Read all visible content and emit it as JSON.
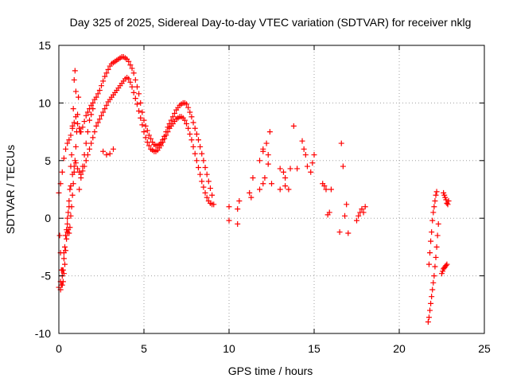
{
  "chart_data": {
    "type": "scatter",
    "title": "Day 325 of 2025, Sidereal Day-to-day VTEC variation (SDTVAR) for receiver nklg",
    "xlabel": "GPS time / hours",
    "ylabel": "SDTVAR / TECUs",
    "xlim": [
      0,
      25
    ],
    "ylim": [
      -10,
      15
    ],
    "xticks": [
      0,
      5,
      10,
      15,
      20,
      25
    ],
    "yticks": [
      -10,
      -5,
      0,
      5,
      10,
      15
    ],
    "grid": true,
    "marker": "plus",
    "color": "#ff0000",
    "series": [
      {
        "name": "main-arc-upper",
        "x": [
          0.0,
          0.1,
          0.2,
          0.3,
          0.4,
          0.5,
          0.6,
          0.7,
          0.8,
          0.9,
          1.0,
          1.1,
          1.2,
          1.3,
          1.4,
          1.5,
          1.6,
          1.7,
          1.8,
          1.9,
          2.0,
          2.1,
          2.2,
          2.3,
          2.4,
          2.5,
          2.6,
          2.7,
          2.8,
          2.9,
          3.0,
          3.1,
          3.2,
          3.3,
          3.4,
          3.5,
          3.6,
          3.7,
          3.8,
          3.9,
          4.0,
          4.1,
          4.2,
          4.3,
          4.4,
          4.5,
          4.6,
          4.7,
          4.8,
          4.9,
          5.0,
          5.1,
          5.2,
          5.3,
          5.4,
          5.5,
          5.6,
          5.7,
          5.8,
          5.9,
          6.0,
          6.1,
          6.2,
          6.3,
          6.4,
          6.5,
          6.6,
          6.7,
          6.8,
          6.9,
          7.0,
          7.1,
          7.2,
          7.3,
          7.4,
          7.5,
          7.6,
          7.7,
          7.8,
          7.9,
          8.0,
          8.1,
          8.2,
          8.3,
          8.4,
          8.5,
          8.6,
          8.7,
          8.8,
          8.9,
          9.0
        ],
        "y": [
          2.2,
          3.0,
          4.0,
          5.2,
          6.0,
          6.5,
          6.8,
          7.2,
          7.8,
          8.3,
          8.8,
          8.2,
          7.8,
          7.5,
          7.9,
          8.4,
          8.9,
          9.2,
          9.5,
          9.8,
          10.0,
          10.3,
          10.5,
          10.8,
          11.1,
          11.5,
          11.9,
          12.3,
          12.6,
          12.9,
          13.2,
          13.4,
          13.5,
          13.6,
          13.7,
          13.8,
          13.9,
          14.0,
          14.0,
          13.9,
          13.8,
          13.6,
          13.3,
          13.0,
          12.6,
          12.0,
          11.4,
          10.8,
          10.0,
          9.2,
          8.5,
          8.0,
          7.6,
          7.2,
          6.9,
          6.6,
          6.4,
          6.3,
          6.3,
          6.4,
          6.5,
          6.8,
          7.1,
          7.5,
          7.9,
          8.2,
          8.5,
          8.8,
          9.1,
          9.4,
          9.6,
          9.8,
          9.9,
          10.0,
          10.0,
          9.9,
          9.6,
          9.2,
          8.8,
          8.3,
          7.8,
          7.3,
          6.8,
          6.2,
          5.6,
          5.0,
          4.4,
          3.8,
          3.2,
          2.6,
          2.0
        ]
      },
      {
        "name": "main-arc-lower",
        "x": [
          0.0,
          0.1,
          0.2,
          0.3,
          0.4,
          0.5,
          0.6,
          0.7,
          0.8,
          0.9,
          1.0,
          1.1,
          1.2,
          1.3,
          1.4,
          1.5,
          1.6,
          1.7,
          1.8,
          1.9,
          2.0,
          2.1,
          2.2,
          2.3,
          2.4,
          2.5,
          2.6,
          2.7,
          2.8,
          2.9,
          3.0,
          3.1,
          3.2,
          3.3,
          3.4,
          3.5,
          3.6,
          3.7,
          3.8,
          3.9,
          4.0,
          4.1,
          4.2,
          4.3,
          4.4,
          4.5,
          4.6,
          4.7,
          4.8,
          4.9,
          5.0,
          5.1,
          5.2,
          5.3,
          5.4,
          5.5,
          5.6,
          5.7,
          5.8,
          5.9,
          6.0,
          6.1,
          6.2,
          6.3,
          6.4,
          6.5,
          6.6,
          6.7,
          6.8,
          6.9,
          7.0,
          7.1,
          7.2,
          7.3,
          7.4,
          7.5,
          7.6,
          7.7,
          7.8,
          7.9,
          8.0,
          8.1,
          8.2,
          8.3,
          8.4,
          8.5,
          8.6,
          8.7,
          8.8,
          8.9,
          9.0,
          9.1
        ],
        "y": [
          -6.0,
          -5.5,
          -4.5,
          -3.0,
          -1.5,
          0.0,
          1.5,
          2.8,
          3.8,
          4.5,
          4.8,
          4.3,
          4.0,
          3.8,
          4.1,
          4.5,
          5.0,
          5.5,
          6.0,
          6.5,
          7.0,
          7.5,
          8.0,
          8.3,
          8.6,
          8.9,
          9.2,
          9.5,
          9.8,
          10.1,
          10.3,
          10.5,
          10.7,
          10.9,
          11.1,
          11.3,
          11.5,
          11.7,
          11.9,
          12.1,
          12.2,
          12.1,
          11.8,
          11.4,
          10.9,
          10.4,
          9.9,
          9.3,
          8.7,
          8.1,
          7.5,
          7.0,
          6.6,
          6.3,
          6.0,
          5.9,
          5.8,
          5.8,
          5.9,
          6.1,
          6.3,
          6.6,
          6.9,
          7.2,
          7.5,
          7.8,
          8.0,
          8.2,
          8.4,
          8.6,
          8.7,
          8.8,
          8.8,
          8.7,
          8.5,
          8.2,
          7.8,
          7.3,
          6.8,
          6.2,
          5.6,
          5.0,
          4.4,
          3.8,
          3.2,
          2.7,
          2.2,
          1.8,
          1.5,
          1.3,
          1.2,
          1.2
        ]
      },
      {
        "name": "early-scatter",
        "x": [
          0.05,
          0.1,
          0.15,
          0.2,
          0.25,
          0.3,
          0.35,
          0.4,
          0.45,
          0.5,
          0.55,
          0.6,
          0.65,
          0.7,
          0.75,
          0.8,
          0.85,
          0.9,
          0.95,
          1.0,
          1.05,
          0.9,
          0.95,
          1.0,
          0.85,
          0.8,
          0.75,
          0.7,
          0.65,
          0.6,
          0.55,
          0.5,
          0.45,
          0.4,
          0.35,
          0.3,
          0.25,
          0.2,
          0.15,
          0.1,
          1.2,
          1.3,
          1.4,
          1.5,
          1.6,
          1.7,
          1.8,
          1.9,
          2.0,
          2.6,
          2.8,
          3.0,
          3.2,
          1.1,
          1.15,
          1.25
        ],
        "y": [
          -1.5,
          -3.0,
          -4.5,
          -5.8,
          -5.5,
          -4.8,
          -4.0,
          -2.8,
          -1.8,
          -1.2,
          -1.0,
          -1.3,
          -0.8,
          0.2,
          1.0,
          2.0,
          3.0,
          4.0,
          5.0,
          6.2,
          7.5,
          12.0,
          12.8,
          11.0,
          9.5,
          8.0,
          5.5,
          4.5,
          2.5,
          1.0,
          0.5,
          -0.5,
          -1.0,
          -1.5,
          -2.5,
          -3.5,
          -4.5,
          -5.0,
          -5.8,
          -6.2,
          2.5,
          3.5,
          4.5,
          5.5,
          6.5,
          7.5,
          8.5,
          9.0,
          9.5,
          5.8,
          5.5,
          5.6,
          6.0,
          9.0,
          10.5,
          7.5
        ]
      },
      {
        "name": "sparse-mid",
        "x": [
          10.0,
          10.0,
          10.5,
          10.5,
          10.6,
          11.2,
          11.3,
          11.4,
          11.8,
          12.0,
          12.0,
          12.1,
          12.2,
          12.3,
          12.4,
          12.5,
          13.0,
          13.0,
          13.2,
          13.3,
          13.5,
          13.8,
          14.0,
          14.3,
          14.4,
          14.5,
          14.6,
          14.8,
          14.9,
          15.0,
          15.5,
          15.6,
          15.7,
          15.8,
          15.9,
          16.0,
          16.5,
          16.6,
          16.7,
          16.8,
          16.9,
          17.0,
          17.5,
          17.6,
          17.7,
          17.8,
          17.9,
          18.0,
          11.8,
          12.0,
          12.3,
          13.3,
          13.6
        ],
        "y": [
          -0.2,
          1.0,
          -0.5,
          0.8,
          1.5,
          2.2,
          1.8,
          3.5,
          2.5,
          5.8,
          6.0,
          3.5,
          6.5,
          5.5,
          7.5,
          3.0,
          2.5,
          4.3,
          4.0,
          2.8,
          2.5,
          8.0,
          4.3,
          6.7,
          6.0,
          5.5,
          4.5,
          4.0,
          4.8,
          5.5,
          3.0,
          2.8,
          2.5,
          0.3,
          0.5,
          2.5,
          -1.2,
          6.5,
          4.5,
          0.2,
          1.2,
          -1.3,
          -0.2,
          0.2,
          0.5,
          0.8,
          0.5,
          1.0,
          5.0,
          3.0,
          4.7,
          3.5,
          4.3
        ]
      },
      {
        "name": "late-arcs",
        "x": [
          21.7,
          21.75,
          21.8,
          21.85,
          21.9,
          21.95,
          22.0,
          22.05,
          22.1,
          22.15,
          22.2,
          22.25,
          22.3,
          21.75,
          21.8,
          21.85,
          21.9,
          21.95,
          22.0,
          22.05,
          22.1,
          22.15,
          22.2,
          22.5,
          22.55,
          22.6,
          22.65,
          22.7,
          22.75,
          22.8,
          22.85,
          22.9,
          22.6,
          22.65,
          22.7,
          22.75,
          22.8
        ],
        "y": [
          -9.0,
          -8.6,
          -8.0,
          -7.4,
          -6.8,
          -6.2,
          -5.6,
          -5.0,
          -4.2,
          -3.4,
          -2.5,
          -1.5,
          -0.5,
          -4.0,
          -3.0,
          -2.0,
          -1.2,
          -0.2,
          0.5,
          1.0,
          1.5,
          2.0,
          2.3,
          -4.8,
          -4.6,
          -4.4,
          -4.3,
          -4.2,
          -4.1,
          -4.0,
          1.2,
          1.5,
          2.2,
          2.0,
          1.8,
          1.6,
          1.3
        ]
      }
    ]
  }
}
